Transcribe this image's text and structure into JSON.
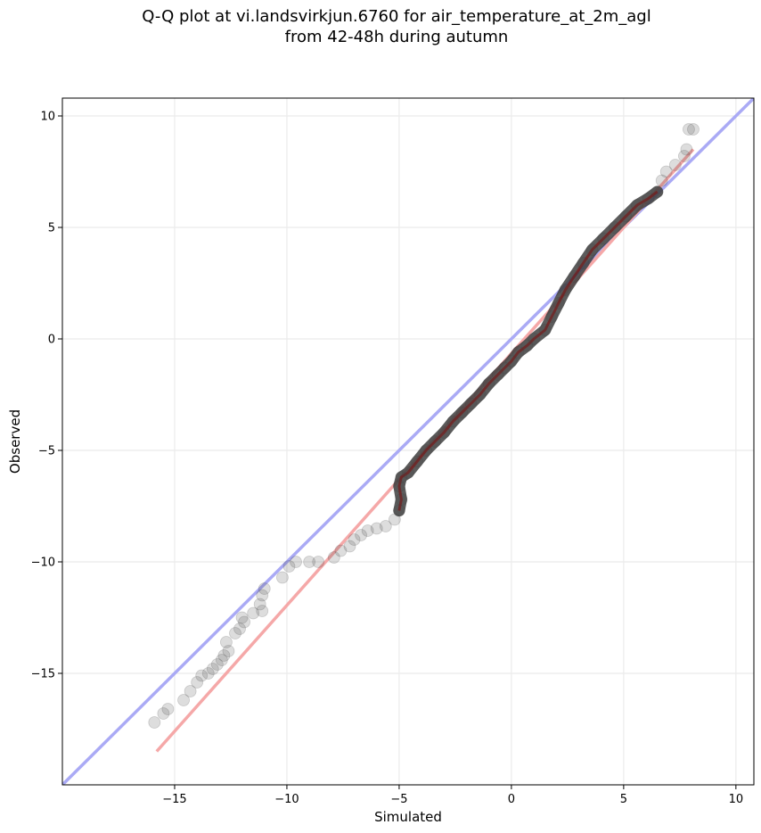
{
  "chart_data": {
    "type": "scatter",
    "title_line1": "Q-Q plot at vi.landsvirkjun.6760 for air_temperature_at_2m_agl",
    "title_line2": "from 42-48h during autumn",
    "xlabel": "Simulated",
    "ylabel": "Observed",
    "xlim": [
      -20.0,
      10.8
    ],
    "ylim": [
      -20.0,
      10.8
    ],
    "xticks": [
      -15,
      -10,
      -5,
      0,
      5,
      10
    ],
    "yticks": [
      -15,
      -10,
      -5,
      0,
      5,
      10
    ],
    "xtick_labels": [
      "−15",
      "−10",
      "−5",
      "0",
      "5",
      "10"
    ],
    "ytick_labels": [
      "−15",
      "−10",
      "−5",
      "0",
      "5",
      "10"
    ],
    "grid": true,
    "colors": {
      "points": "#404040",
      "identity_line": "#aaaaf5",
      "fit_line": "#f5a8a8",
      "dense_overlay_red": "#8b0000",
      "dense_overlay_blue": "#0000aa"
    },
    "identity_line": [
      [
        -20.0,
        -20.0
      ],
      [
        10.8,
        10.8
      ]
    ],
    "fit_line": [
      [
        -15.8,
        -18.5
      ],
      [
        8.1,
        8.5
      ]
    ],
    "points": [
      [
        -15.9,
        -17.2
      ],
      [
        -15.5,
        -16.8
      ],
      [
        -15.3,
        -16.6
      ],
      [
        -14.6,
        -16.2
      ],
      [
        -14.3,
        -15.8
      ],
      [
        -14.0,
        -15.4
      ],
      [
        -13.8,
        -15.1
      ],
      [
        -13.5,
        -15.0
      ],
      [
        -13.3,
        -14.8
      ],
      [
        -13.1,
        -14.6
      ],
      [
        -12.9,
        -14.4
      ],
      [
        -12.8,
        -14.2
      ],
      [
        -12.6,
        -14.0
      ],
      [
        -12.7,
        -13.6
      ],
      [
        -12.3,
        -13.2
      ],
      [
        -12.1,
        -13.0
      ],
      [
        -11.9,
        -12.7
      ],
      [
        -12.0,
        -12.5
      ],
      [
        -11.5,
        -12.3
      ],
      [
        -11.1,
        -12.2
      ],
      [
        -11.2,
        -11.9
      ],
      [
        -11.1,
        -11.5
      ],
      [
        -11.0,
        -11.2
      ],
      [
        -10.2,
        -10.7
      ],
      [
        -9.9,
        -10.2
      ],
      [
        -9.6,
        -10.0
      ],
      [
        -9.0,
        -10.0
      ],
      [
        -8.6,
        -10.0
      ],
      [
        -7.9,
        -9.8
      ],
      [
        -7.6,
        -9.5
      ],
      [
        -7.2,
        -9.3
      ],
      [
        -7.0,
        -9.0
      ],
      [
        -6.7,
        -8.8
      ],
      [
        -6.4,
        -8.6
      ],
      [
        -6.0,
        -8.5
      ],
      [
        -5.6,
        -8.4
      ],
      [
        -5.2,
        -8.1
      ],
      [
        -5.0,
        -7.7
      ],
      [
        -4.9,
        -7.2
      ],
      [
        -5.0,
        -6.6
      ],
      [
        -4.9,
        -6.2
      ],
      [
        -4.6,
        -6.0
      ],
      [
        -4.2,
        -5.5
      ],
      [
        -3.8,
        -5.0
      ],
      [
        -3.4,
        -4.6
      ],
      [
        -3.0,
        -4.2
      ],
      [
        -2.6,
        -3.7
      ],
      [
        -2.2,
        -3.3
      ],
      [
        -1.8,
        -2.9
      ],
      [
        -1.4,
        -2.5
      ],
      [
        -1.0,
        -2.0
      ],
      [
        -0.6,
        -1.6
      ],
      [
        -0.3,
        -1.3
      ],
      [
        0.0,
        -1.0
      ],
      [
        0.3,
        -0.6
      ],
      [
        0.7,
        -0.3
      ],
      [
        1.0,
        0.0
      ],
      [
        1.5,
        0.4
      ],
      [
        1.8,
        1.0
      ],
      [
        2.1,
        1.6
      ],
      [
        2.4,
        2.2
      ],
      [
        2.8,
        2.8
      ],
      [
        3.2,
        3.4
      ],
      [
        3.6,
        4.0
      ],
      [
        4.1,
        4.5
      ],
      [
        4.6,
        5.0
      ],
      [
        5.1,
        5.5
      ],
      [
        5.6,
        6.0
      ],
      [
        6.1,
        6.3
      ],
      [
        6.5,
        6.6
      ],
      [
        6.7,
        7.1
      ],
      [
        6.9,
        7.5
      ],
      [
        7.3,
        7.8
      ],
      [
        7.7,
        8.2
      ],
      [
        7.8,
        8.5
      ],
      [
        7.9,
        9.4
      ],
      [
        8.1,
        9.4
      ]
    ]
  }
}
